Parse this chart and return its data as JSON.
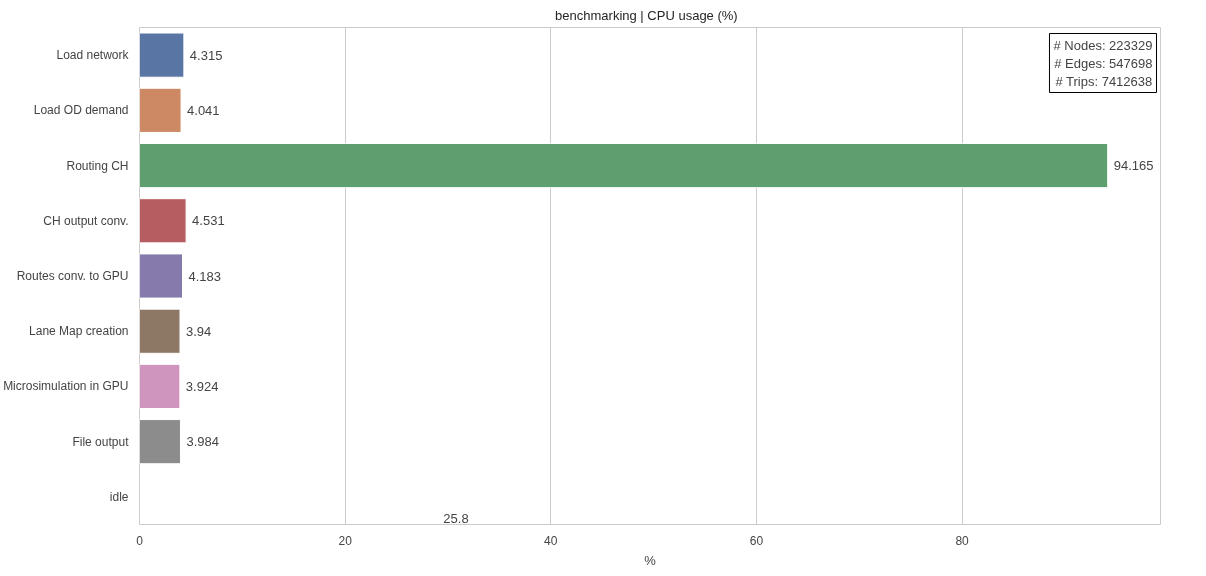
{
  "chart_data": {
    "type": "bar",
    "orientation": "horizontal",
    "title": "benchmarking  |  CPU usage (%)",
    "xlabel": "%",
    "categories": [
      "Load network",
      "Load OD demand",
      "Routing CH",
      "CH output conv.",
      "Routes conv. to GPU",
      "Lane Map creation",
      "Microsimulation in GPU",
      "File output",
      "idle"
    ],
    "values": [
      4.315,
      4.041,
      94.165,
      4.531,
      4.183,
      3.94,
      3.924,
      3.984,
      null
    ],
    "value_labels": [
      "4.315",
      "4.041",
      "94.165",
      "4.531",
      "4.183",
      "3.94",
      "3.924",
      "3.984",
      null
    ],
    "colors": [
      "#5975a4",
      "#cc8963",
      "#5f9e6e",
      "#b55d60",
      "#857aab",
      "#8d7866",
      "#d095bf",
      "#8c8c8c",
      "#ccb974"
    ],
    "xlim": [
      0,
      99.3
    ],
    "xticks": [
      0,
      20,
      40,
      60,
      80
    ],
    "grid": "x",
    "annotations": [
      "# Nodes: 223329\n# Edges: 547698\n# Trips: 7412638",
      "25.8"
    ]
  }
}
